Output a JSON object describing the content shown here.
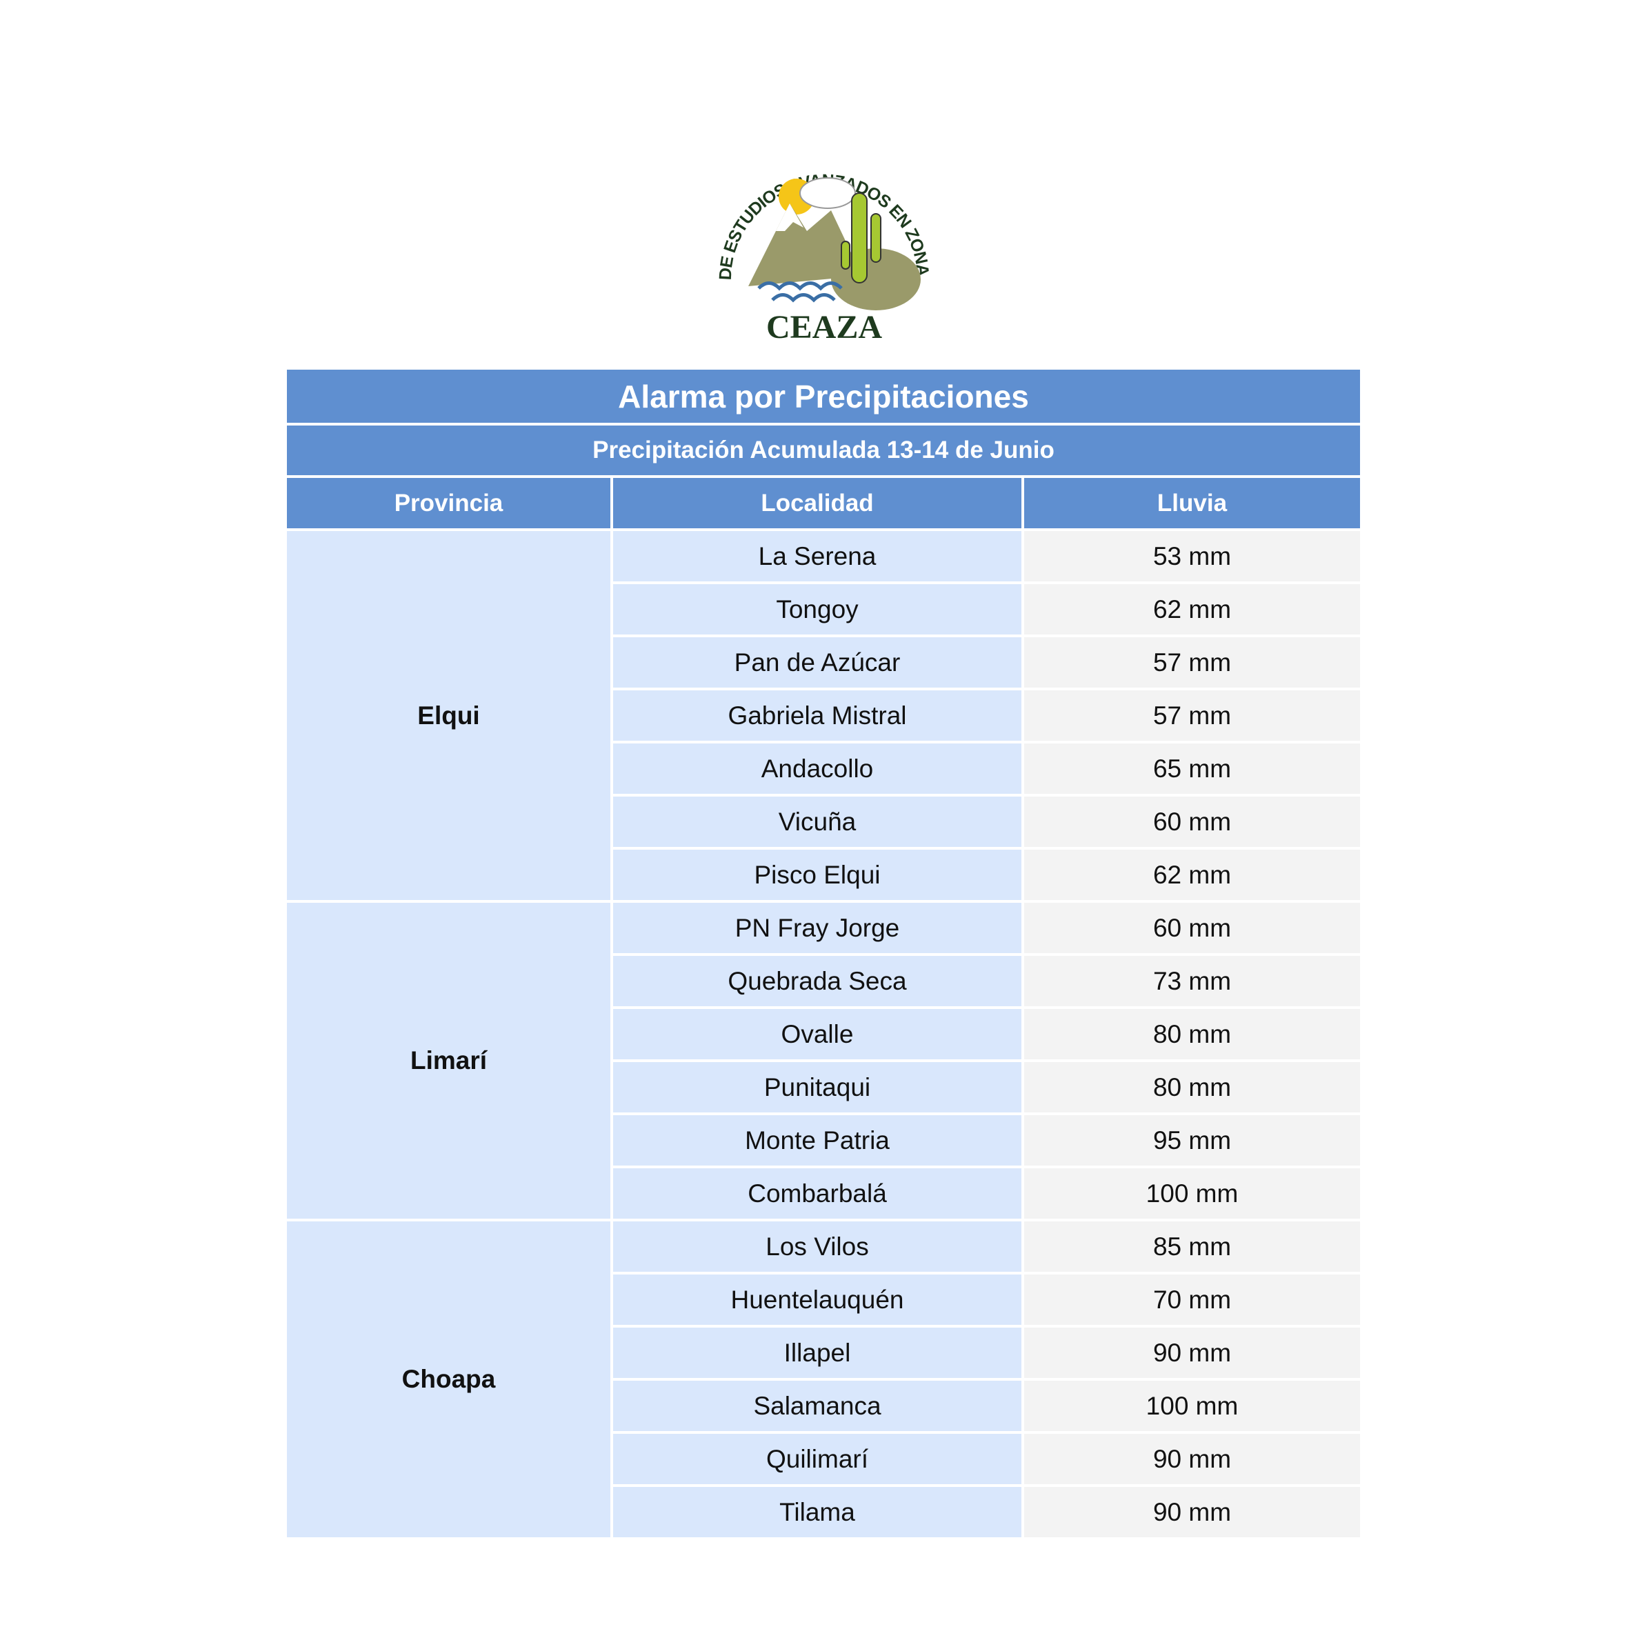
{
  "logo": {
    "arc_text": "CENTRO DE ESTUDIOS AVANZADOS EN ZONAS ÁRIDAS",
    "name": "CEAZA"
  },
  "table": {
    "title": "Alarma por Precipitaciones",
    "subtitle": "Precipitación Acumulada 13-14 de Junio",
    "headers": [
      "Provincia",
      "Localidad",
      "Lluvia"
    ],
    "colors": {
      "header": "#5f8fd0",
      "province_cell": "#d9e7fc",
      "rain_cell": "#f3f3f3"
    },
    "groups": [
      {
        "provincia": "Elqui",
        "rows": [
          {
            "localidad": "La Serena",
            "lluvia": "53 mm"
          },
          {
            "localidad": "Tongoy",
            "lluvia": "62 mm"
          },
          {
            "localidad": "Pan de Azúcar",
            "lluvia": "57 mm"
          },
          {
            "localidad": "Gabriela Mistral",
            "lluvia": "57 mm"
          },
          {
            "localidad": "Andacollo",
            "lluvia": "65 mm"
          },
          {
            "localidad": "Vicuña",
            "lluvia": "60 mm"
          },
          {
            "localidad": "Pisco Elqui",
            "lluvia": "62 mm"
          }
        ]
      },
      {
        "provincia": "Limarí",
        "rows": [
          {
            "localidad": "PN Fray Jorge",
            "lluvia": "60 mm"
          },
          {
            "localidad": "Quebrada Seca",
            "lluvia": "73 mm"
          },
          {
            "localidad": "Ovalle",
            "lluvia": "80 mm"
          },
          {
            "localidad": "Punitaqui",
            "lluvia": "80 mm"
          },
          {
            "localidad": "Monte Patria",
            "lluvia": "95 mm"
          },
          {
            "localidad": "Combarbalá",
            "lluvia": "100 mm"
          }
        ]
      },
      {
        "provincia": "Choapa",
        "rows": [
          {
            "localidad": "Los Vilos",
            "lluvia": "85 mm"
          },
          {
            "localidad": "Huentelauquén",
            "lluvia": "70 mm"
          },
          {
            "localidad": "Illapel",
            "lluvia": "90 mm"
          },
          {
            "localidad": "Salamanca",
            "lluvia": "100 mm"
          },
          {
            "localidad": "Quilimarí",
            "lluvia": "90 mm"
          },
          {
            "localidad": "Tilama",
            "lluvia": "90 mm"
          }
        ]
      }
    ]
  }
}
